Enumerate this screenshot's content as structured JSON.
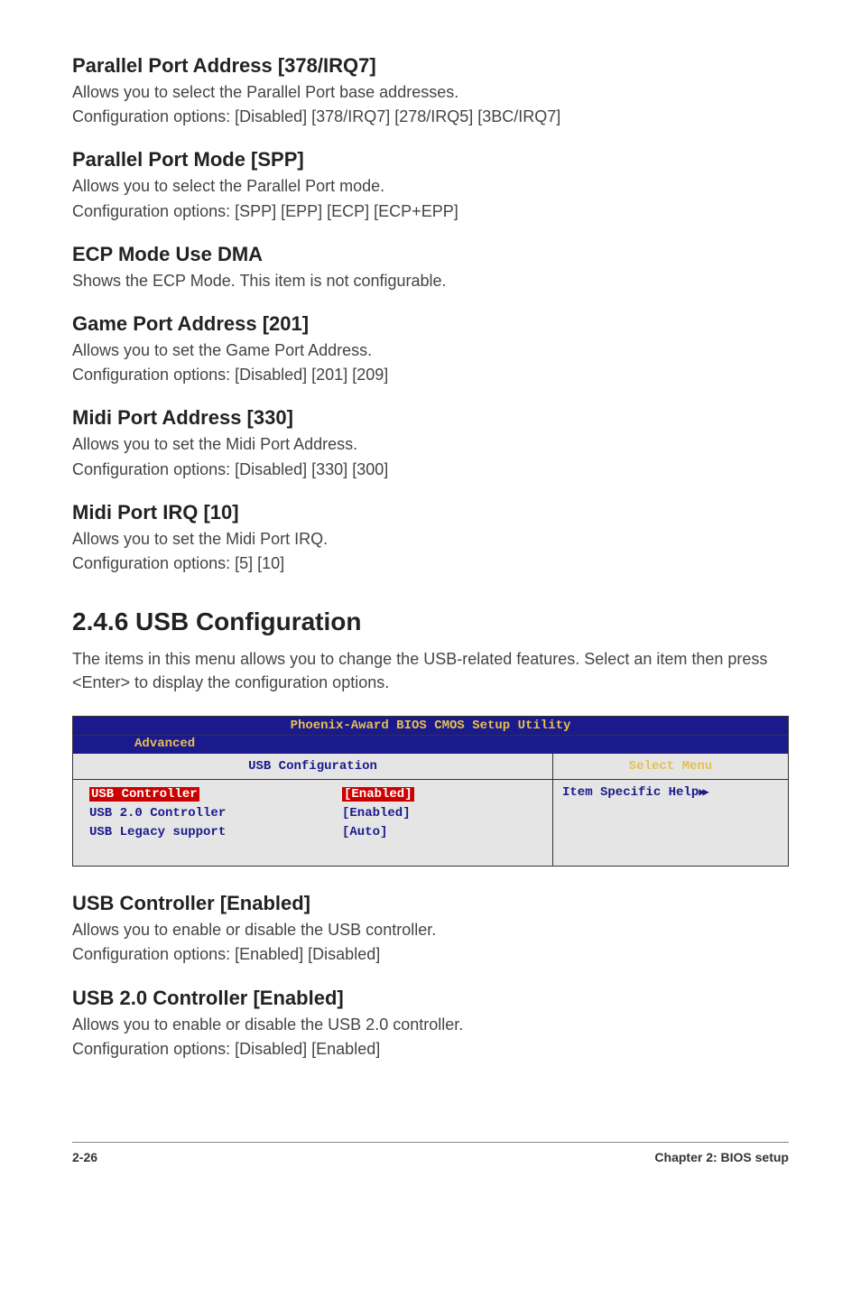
{
  "sections": {
    "parallel_addr": {
      "heading": "Parallel Port Address [378/IRQ7]",
      "line1": "Allows you to select the Parallel Port base addresses.",
      "line2": "Configuration options: [Disabled] [378/IRQ7] [278/IRQ5] [3BC/IRQ7]"
    },
    "parallel_mode": {
      "heading": "Parallel Port Mode [SPP]",
      "line1": "Allows you to select the Parallel Port  mode.",
      "line2": "Configuration options: [SPP] [EPP] [ECP] [ECP+EPP]"
    },
    "ecp_mode": {
      "heading": "ECP Mode Use DMA",
      "line1": "Shows the ECP Mode. This item is not configurable."
    },
    "game_port": {
      "heading": "Game Port Address [201]",
      "line1": "Allows you to set the Game Port Address.",
      "line2": "Configuration options: [Disabled] [201] [209]"
    },
    "midi_addr": {
      "heading": "Midi Port Address [330]",
      "line1": "Allows you to set the Midi Port Address.",
      "line2": "Configuration options: [Disabled] [330] [300]"
    },
    "midi_irq": {
      "heading": "Midi Port IRQ [10]",
      "line1": "Allows you to set the Midi Port IRQ.",
      "line2": "Configuration options: [5] [10]"
    },
    "usb_config": {
      "major": "2.4.6   USB Configuration",
      "intro": "The items in this menu allows you to change the USB-related features. Select an item then press <Enter> to display the configuration options."
    },
    "usb_ctrl": {
      "heading": "USB Controller [Enabled]",
      "line1": "Allows you to enable or disable the USB controller.",
      "line2": "Configuration options: [Enabled] [Disabled]"
    },
    "usb20_ctrl": {
      "heading": "USB 2.0 Controller [Enabled]",
      "line1": "Allows you to enable or disable the USB 2.0 controller.",
      "line2": "Configuration options: [Disabled] [Enabled]"
    }
  },
  "bios": {
    "title": "Phoenix-Award BIOS CMOS Setup Utility",
    "tab": "Advanced",
    "left_header": "USB Configuration",
    "right_header": "Select Menu",
    "rows": [
      {
        "label": "USB Controller",
        "value": "[Enabled]",
        "highlighted": true
      },
      {
        "label": "USB 2.0 Controller",
        "value": "[Enabled]",
        "highlighted": false
      },
      {
        "label": "USB Legacy support",
        "value": "[Auto]",
        "highlighted": false
      }
    ],
    "help_text": "Item Specific Help",
    "colors": {
      "title_bg": "#1a1a8c",
      "title_fg": "#e6c050",
      "panel_bg": "#e5e5e5",
      "highlight_bg": "#cc0000",
      "highlight_fg": "#ffffff",
      "normal_fg": "#1a1a8c"
    }
  },
  "footer": {
    "page": "2-26",
    "chapter": "Chapter 2: BIOS setup"
  }
}
